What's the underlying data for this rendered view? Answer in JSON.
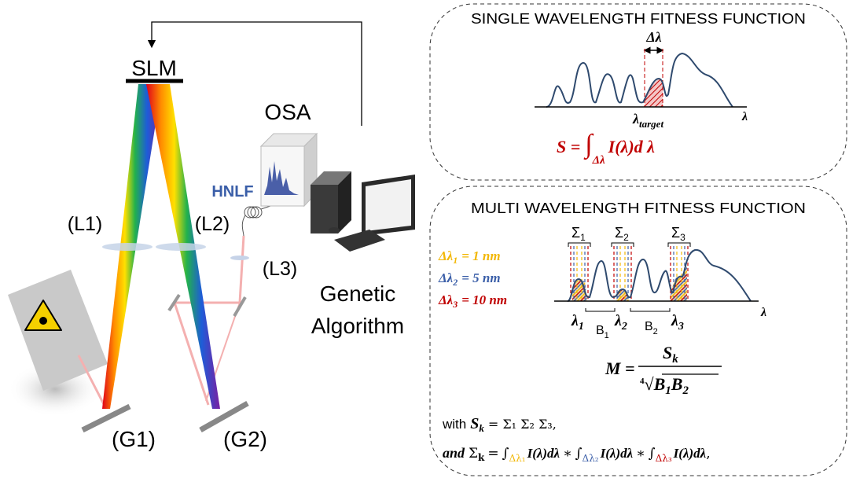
{
  "setup": {
    "slm": "SLM",
    "osa": "OSA",
    "hnlf": "HNLF",
    "lenses": [
      "(L1)",
      "(L2)",
      "(L3)"
    ],
    "gratings": [
      "(G1)",
      "(G2)"
    ],
    "algorithm": [
      "Genetic",
      "Algorithm"
    ]
  },
  "single": {
    "title": "SINGLE WAVELENGTH FITNESS FUNCTION",
    "window": "Δλ",
    "target": {
      "main": "λ",
      "sub": "target"
    },
    "axis": "λ",
    "formula": {
      "lhs": "S =",
      "integral": "∫",
      "limit": "Δλ",
      "integrand": "I(λ)d λ"
    }
  },
  "multi": {
    "title": "MULTI WAVELENGTH FITNESS FUNCTION",
    "sums": [
      {
        "main": "Σ",
        "sub": "1"
      },
      {
        "main": "Σ",
        "sub": "2"
      },
      {
        "main": "Σ",
        "sub": "3"
      }
    ],
    "windows": [
      {
        "main": "Δλ",
        "sub": "1",
        "rest": "= 1 nm",
        "color": "#f2b705"
      },
      {
        "main": "Δλ",
        "sub": "2",
        "rest": "= 5 nm",
        "color": "#3a5ea8"
      },
      {
        "main": "Δλ",
        "sub": "3",
        "rest": "= 10 nm",
        "color": "#c00000"
      }
    ],
    "peaks": [
      {
        "main": "λ",
        "sub": "1"
      },
      {
        "main": "λ",
        "sub": "2"
      },
      {
        "main": "λ",
        "sub": "3"
      }
    ],
    "spacings": [
      {
        "main": "B",
        "sub": "1"
      },
      {
        "main": "B",
        "sub": "2"
      }
    ],
    "axis": "λ",
    "formula": {
      "lhs": "M =",
      "numerator": {
        "main": "S",
        "sub": "k"
      },
      "root_index": "4",
      "radical": "√",
      "denominator": [
        {
          "main": "B",
          "sub": "1"
        },
        {
          "main": "B",
          "sub": "2"
        }
      ]
    },
    "with_line": {
      "prefix": "with",
      "term": {
        "main": "S",
        "sub": "k"
      },
      "rest": "= Σ₁ Σ₂ Σ₃,"
    },
    "and_line": {
      "prefix": "and",
      "lhs": {
        "main": "Σ",
        "sub": "k"
      },
      "eq": "=",
      "op": "∗",
      "end": ",",
      "terms": [
        {
          "integral": "∫",
          "limit": "Δλ₁",
          "integrand": "I(λ)dλ"
        },
        {
          "integral": "∫",
          "limit": "Δλ₂",
          "integrand": "I(λ)dλ"
        },
        {
          "integral": "∫",
          "limit": "Δλ₃",
          "integrand": "I(λ)dλ"
        }
      ]
    }
  }
}
